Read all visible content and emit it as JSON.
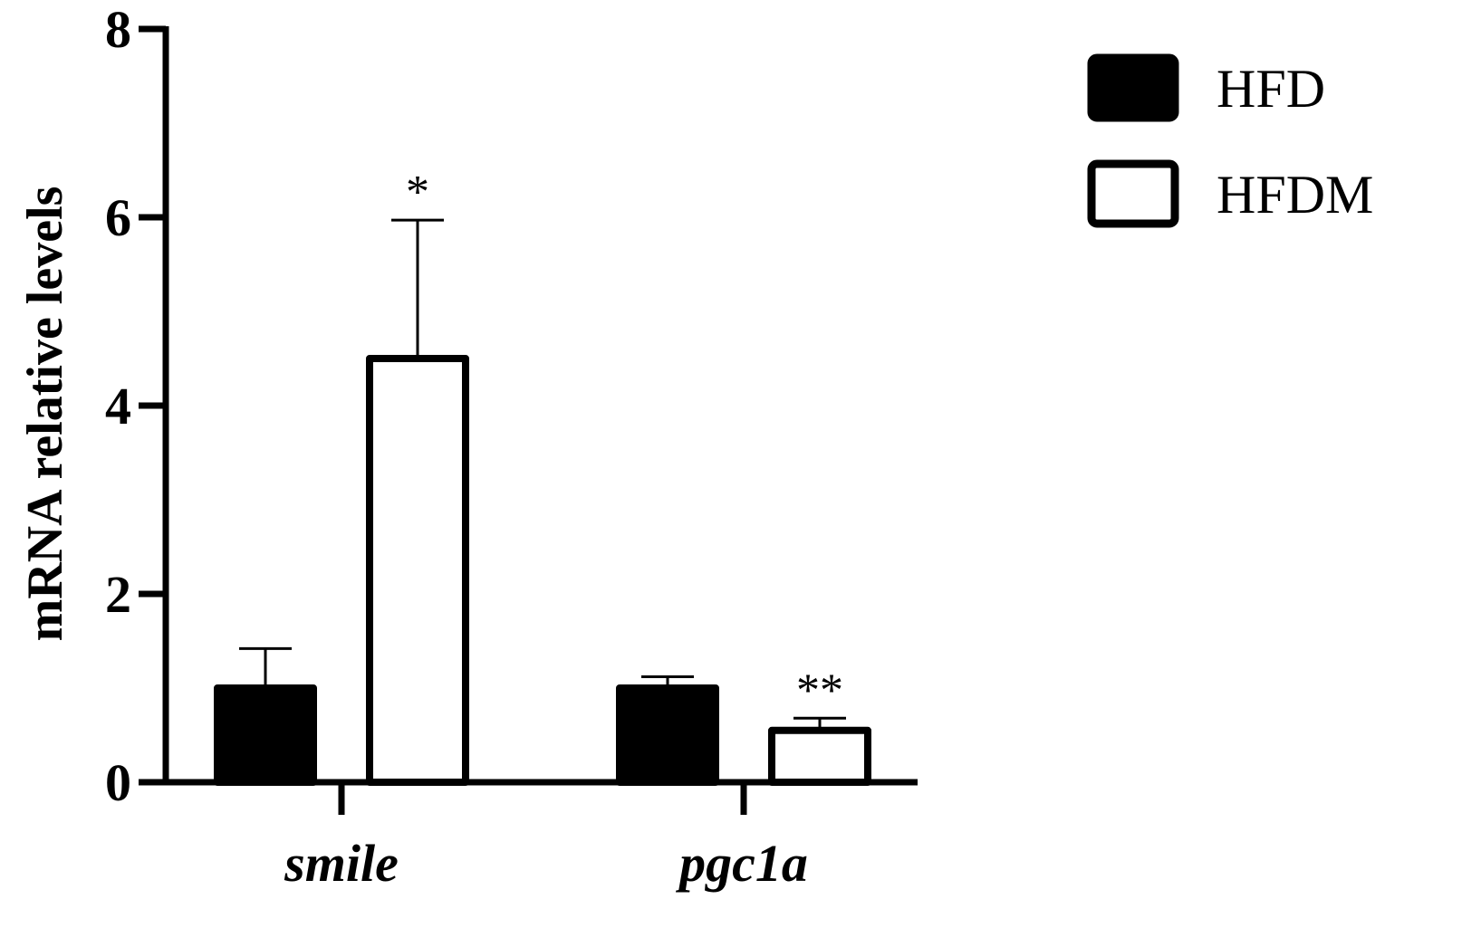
{
  "chart_data": {
    "type": "bar",
    "title": "",
    "xlabel": "",
    "ylabel": "mRNA relative levels",
    "ylim": [
      0,
      8
    ],
    "yticks": [
      0,
      2,
      4,
      6,
      8
    ],
    "grid": false,
    "legend_position": "top-right",
    "categories": [
      "smile",
      "pgc1a"
    ],
    "series": [
      {
        "name": "HFD",
        "fill": "#000000",
        "values": [
          1.0,
          1.0
        ],
        "errors": [
          0.42,
          0.12
        ],
        "significance": [
          "",
          ""
        ]
      },
      {
        "name": "HFDM",
        "fill": "#ffffff",
        "values": [
          4.5,
          0.55
        ],
        "errors": [
          1.47,
          0.13
        ],
        "significance": [
          "*",
          "**"
        ]
      }
    ]
  }
}
